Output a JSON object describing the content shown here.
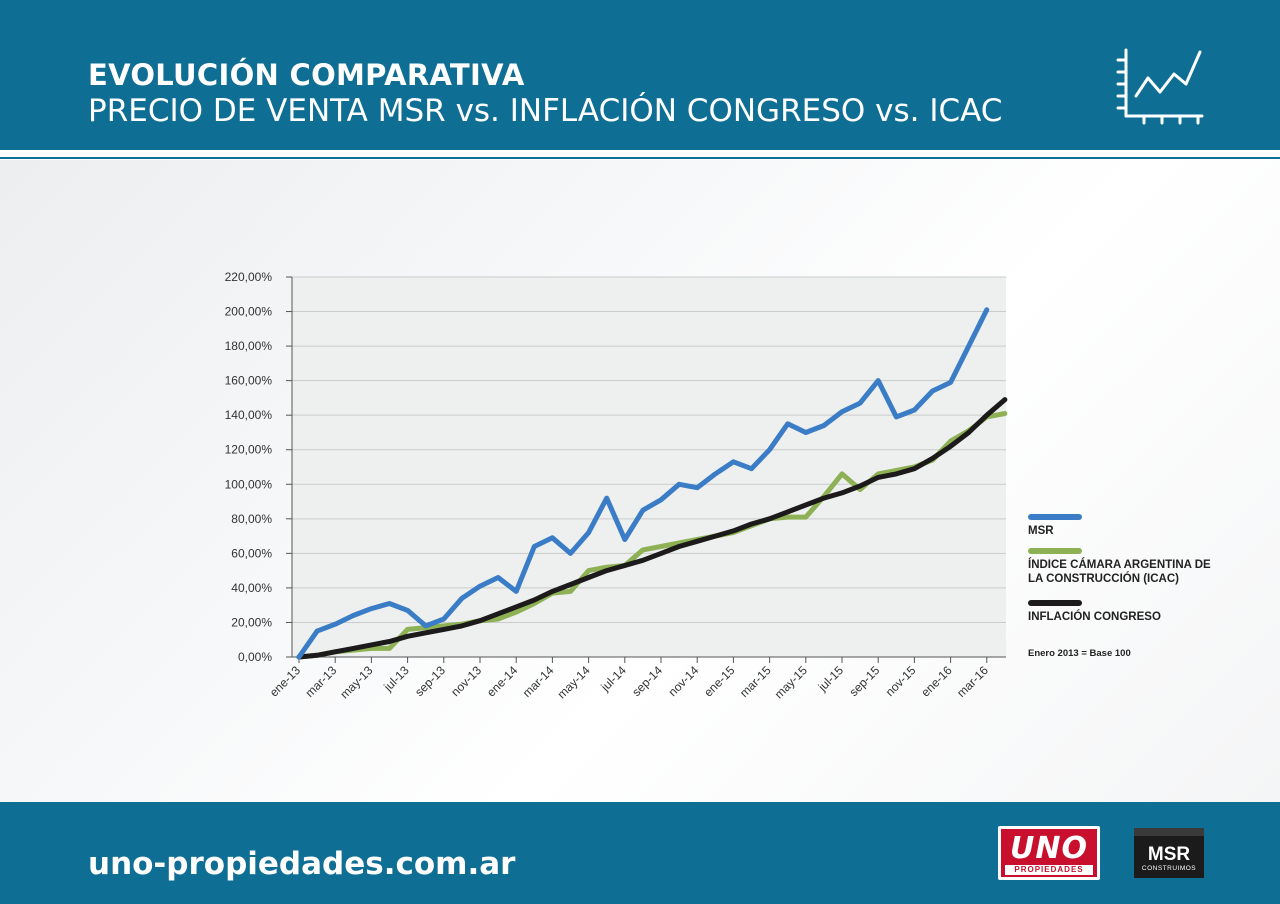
{
  "header": {
    "title": "EVOLUCIÓN COMPARATIVA",
    "subtitle": "PRECIO DE VENTA MSR vs. INFLACIÓN CONGRESO vs. ICAC",
    "icon": "line-chart-icon",
    "background_color": "#0e6e93"
  },
  "footer": {
    "url": "uno-propiedades.com.ar",
    "logos": {
      "uno": {
        "text": "UNO",
        "subtext": "PROPIEDADES"
      },
      "msr": {
        "text": "MSR",
        "subtext": "CONSTRUIMOS"
      }
    }
  },
  "legend": {
    "note": "Enero 2013 = Base 100"
  },
  "chart_data": {
    "type": "line",
    "x": [
      "ene-13",
      "feb-13",
      "mar-13",
      "abr-13",
      "may-13",
      "jun-13",
      "jul-13",
      "ago-13",
      "sep-13",
      "oct-13",
      "nov-13",
      "dic-13",
      "ene-14",
      "feb-14",
      "mar-14",
      "abr-14",
      "may-14",
      "jun-14",
      "jul-14",
      "ago-14",
      "sep-14",
      "oct-14",
      "nov-14",
      "dic-14",
      "ene-15",
      "feb-15",
      "mar-15",
      "abr-15",
      "may-15",
      "jun-15",
      "jul-15",
      "ago-15",
      "sep-15",
      "oct-15",
      "nov-15",
      "dic-15",
      "ene-16",
      "feb-16",
      "mar-16",
      "abr-16"
    ],
    "tick_labels": [
      "ene-13",
      "mar-13",
      "may-13",
      "jul-13",
      "sep-13",
      "nov-13",
      "ene-14",
      "mar-14",
      "may-14",
      "jul-14",
      "sep-14",
      "nov-14",
      "ene-15",
      "mar-15",
      "may-15",
      "jul-15",
      "sep-15",
      "nov-15",
      "ene-16",
      "mar-16"
    ],
    "y_ticks": [
      "0,00%",
      "20,00%",
      "40,00%",
      "60,00%",
      "80,00%",
      "100,00%",
      "120,00%",
      "140,00%",
      "160,00%",
      "180,00%",
      "200,00%",
      "220,00%"
    ],
    "ylim": [
      0,
      220
    ],
    "grid": true,
    "legend_position": "right",
    "series": [
      {
        "name": "MSR",
        "color": "#3a7cc6",
        "values": [
          0,
          15,
          19,
          24,
          28,
          31,
          27,
          18,
          22,
          34,
          41,
          46,
          38,
          64,
          69,
          60,
          72,
          92,
          68,
          85,
          91,
          100,
          98,
          106,
          113,
          109,
          120,
          135,
          130,
          134,
          142,
          147,
          160,
          139,
          143,
          154,
          159,
          180,
          201,
          null
        ]
      },
      {
        "name": "ÍNDICE CÁMARA ARGENTINA DE LA CONSTRUCCIÓN (ICAC)",
        "color": "#8db154",
        "values": [
          0,
          1,
          3,
          4,
          5,
          5,
          16,
          17,
          18,
          19,
          21,
          22,
          26,
          31,
          37,
          38,
          50,
          52,
          53,
          62,
          64,
          66,
          68,
          70,
          72,
          76,
          80,
          81,
          81,
          93,
          106,
          97,
          106,
          108,
          110,
          114,
          125,
          131,
          139,
          141
        ]
      },
      {
        "name": "INFLACIÓN CONGRESO",
        "color": "#1c1a1a",
        "values": [
          0,
          1,
          3,
          5,
          7,
          9,
          12,
          14,
          16,
          18,
          21,
          25,
          29,
          33,
          38,
          42,
          46,
          50,
          53,
          56,
          60,
          64,
          67,
          70,
          73,
          77,
          80,
          84,
          88,
          92,
          95,
          99,
          104,
          106,
          109,
          115,
          122,
          130,
          140,
          149
        ]
      }
    ]
  }
}
